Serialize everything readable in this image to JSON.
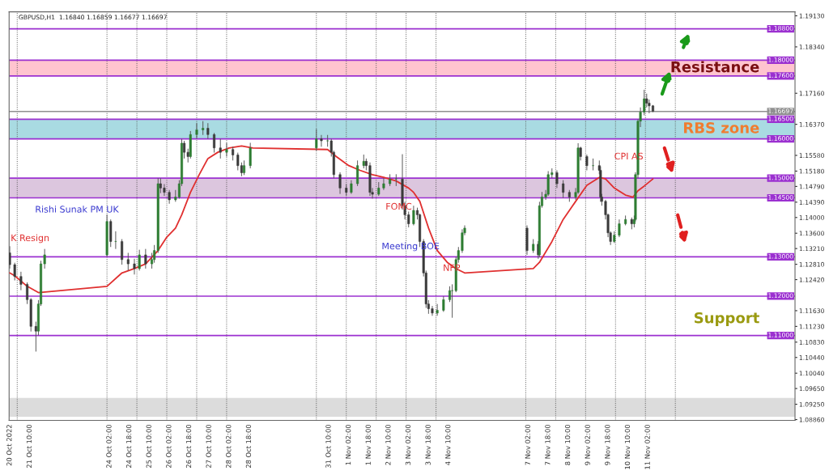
{
  "chart_data": {
    "type": "candlestick",
    "x": [
      "2022-10-20T18:00",
      "2022-10-20T22:00",
      "2022-10-21T03:00",
      "2022-10-21T08:00",
      "2022-10-21T11:00",
      "2022-10-21T15:00",
      "2022-10-21T17:00",
      "2022-10-21T19:00",
      "2022-10-21T22:00",
      "2022-10-24T00:00",
      "2022-10-24T03:00",
      "2022-10-24T07:00",
      "2022-10-24T12:00",
      "2022-10-24T17:00",
      "2022-10-24T22:00",
      "2022-10-25T02:00",
      "2022-10-25T07:00",
      "2022-10-25T12:00",
      "2022-10-25T14:00",
      "2022-10-25T17:00",
      "2022-10-25T19:00",
      "2022-10-25T22:00",
      "2022-10-26T02:00",
      "2022-10-26T07:00",
      "2022-10-26T10:00",
      "2022-10-26T12:00",
      "2022-10-26T14:00",
      "2022-10-26T17:00",
      "2022-10-26T19:00",
      "2022-10-27T00:00",
      "2022-10-27T05:00",
      "2022-10-27T09:00",
      "2022-10-27T14:00",
      "2022-10-27T19:00",
      "2022-10-28T00:00",
      "2022-10-28T05:00",
      "2022-10-28T09:00",
      "2022-10-28T12:00",
      "2022-10-28T14:00",
      "2022-10-28T19:00",
      "2022-10-31T00:00",
      "2022-10-31T04:00",
      "2022-10-31T09:00",
      "2022-10-31T12:00",
      "2022-10-31T14:00",
      "2022-10-31T19:00",
      "2022-11-01T00:00",
      "2022-11-01T04:00",
      "2022-11-01T09:00",
      "2022-11-01T14:00",
      "2022-11-01T16:00",
      "2022-11-01T19:00",
      "2022-11-01T21:00",
      "2022-11-02T02:00",
      "2022-11-02T06:00",
      "2022-11-02T11:00",
      "2022-11-02T16:00",
      "2022-11-02T21:00",
      "2022-11-02T23:00",
      "2022-11-03T02:00",
      "2022-11-03T06:00",
      "2022-11-03T09:00",
      "2022-11-03T11:00",
      "2022-11-03T14:00",
      "2022-11-03T16:00",
      "2022-11-03T18:00",
      "2022-11-03T21:00",
      "2022-11-04T01:00",
      "2022-11-04T06:00",
      "2022-11-04T11:00",
      "2022-11-04T13:00",
      "2022-11-04T16:00",
      "2022-11-04T18:00",
      "2022-11-04T21:00",
      "2022-11-04T23:00",
      "2022-11-07T01:00",
      "2022-11-07T06:00",
      "2022-11-07T10:00",
      "2022-11-07T11:00",
      "2022-11-07T13:00",
      "2022-11-07T16:00",
      "2022-11-07T18:00",
      "2022-11-07T21:00",
      "2022-11-08T01:00",
      "2022-11-08T06:00",
      "2022-11-08T11:00",
      "2022-11-08T16:00",
      "2022-11-08T18:00",
      "2022-11-08T20:00",
      "2022-11-09T01:00",
      "2022-11-09T06:00",
      "2022-11-09T11:00",
      "2022-11-09T12:00",
      "2022-11-09T13:00",
      "2022-11-09T16:00",
      "2022-11-09T18:00",
      "2022-11-09T20:00",
      "2022-11-09T23:00",
      "2022-11-10T03:00",
      "2022-11-10T08:00",
      "2022-11-10T13:00",
      "2022-11-10T15:00",
      "2022-11-10T16:00",
      "2022-11-10T18:00",
      "2022-11-10T20:00",
      "2022-11-10T23:00",
      "2022-11-11T01:00",
      "2022-11-11T03:00",
      "2022-11-11T06:00"
    ],
    "ohlc": [
      [
        1.131,
        1.1327,
        1.127,
        1.128
      ],
      [
        1.128,
        1.1285,
        1.124,
        1.125
      ],
      [
        1.125,
        1.1262,
        1.1215,
        1.123
      ],
      [
        1.123,
        1.1235,
        1.118,
        1.1191
      ],
      [
        1.1191,
        1.1195,
        1.111,
        1.1123
      ],
      [
        1.1123,
        1.1135,
        1.1059,
        1.1111
      ],
      [
        1.1111,
        1.119,
        1.11,
        1.118
      ],
      [
        1.118,
        1.129,
        1.1175,
        1.1282
      ],
      [
        1.1282,
        1.132,
        1.127,
        1.1305
      ],
      [
        1.1305,
        1.1407,
        1.13,
        1.139
      ],
      [
        1.139,
        1.1395,
        1.1325,
        1.1339
      ],
      [
        1.1339,
        1.1365,
        1.132,
        1.1339
      ],
      [
        1.1339,
        1.1345,
        1.128,
        1.1293
      ],
      [
        1.1293,
        1.131,
        1.1265,
        1.1282
      ],
      [
        1.1282,
        1.1295,
        1.1255,
        1.127
      ],
      [
        1.127,
        1.1318,
        1.1265,
        1.1305
      ],
      [
        1.1305,
        1.132,
        1.127,
        1.1282
      ],
      [
        1.1282,
        1.131,
        1.127,
        1.1293
      ],
      [
        1.1293,
        1.133,
        1.1285,
        1.1316
      ],
      [
        1.1316,
        1.15,
        1.131,
        1.1486
      ],
      [
        1.1486,
        1.15,
        1.1462,
        1.1475
      ],
      [
        1.1475,
        1.1485,
        1.1455,
        1.1464
      ],
      [
        1.1464,
        1.147,
        1.1435,
        1.1445
      ],
      [
        1.1445,
        1.147,
        1.144,
        1.1452
      ],
      [
        1.1452,
        1.1495,
        1.1448,
        1.1486
      ],
      [
        1.1486,
        1.16,
        1.148,
        1.1589
      ],
      [
        1.1589,
        1.1595,
        1.155,
        1.1566
      ],
      [
        1.1566,
        1.1575,
        1.154,
        1.1555
      ],
      [
        1.1555,
        1.162,
        1.155,
        1.1611
      ],
      [
        1.1611,
        1.164,
        1.16,
        1.1623
      ],
      [
        1.1623,
        1.1645,
        1.161,
        1.1627
      ],
      [
        1.1627,
        1.164,
        1.16,
        1.1611
      ],
      [
        1.1611,
        1.1615,
        1.1565,
        1.1577
      ],
      [
        1.1577,
        1.16,
        1.155,
        1.1566
      ],
      [
        1.1566,
        1.159,
        1.1555,
        1.1573
      ],
      [
        1.1573,
        1.158,
        1.1545,
        1.1559
      ],
      [
        1.1559,
        1.1565,
        1.152,
        1.1532
      ],
      [
        1.1532,
        1.154,
        1.1505,
        1.1514
      ],
      [
        1.1514,
        1.1545,
        1.1508,
        1.1532
      ],
      [
        1.1532,
        1.159,
        1.1525,
        1.1577
      ],
      [
        1.1577,
        1.1625,
        1.157,
        1.16
      ],
      [
        1.16,
        1.161,
        1.158,
        1.1595
      ],
      [
        1.1595,
        1.161,
        1.158,
        1.1595
      ],
      [
        1.1595,
        1.16,
        1.1555,
        1.1566
      ],
      [
        1.1566,
        1.157,
        1.15,
        1.1509
      ],
      [
        1.1509,
        1.1515,
        1.146,
        1.1475
      ],
      [
        1.1475,
        1.1485,
        1.1455,
        1.1464
      ],
      [
        1.1464,
        1.1495,
        1.146,
        1.1486
      ],
      [
        1.1486,
        1.1545,
        1.148,
        1.1532
      ],
      [
        1.1532,
        1.156,
        1.1525,
        1.1543
      ],
      [
        1.1543,
        1.155,
        1.152,
        1.1532
      ],
      [
        1.1532,
        1.154,
        1.1455,
        1.1464
      ],
      [
        1.1464,
        1.1475,
        1.1448,
        1.1459
      ],
      [
        1.1459,
        1.149,
        1.1455,
        1.1475
      ],
      [
        1.1475,
        1.15,
        1.147,
        1.1486
      ],
      [
        1.1486,
        1.151,
        1.148,
        1.1498
      ],
      [
        1.1498,
        1.151,
        1.148,
        1.1498
      ],
      [
        1.1498,
        1.1561,
        1.142,
        1.143
      ],
      [
        1.143,
        1.144,
        1.1395,
        1.1407
      ],
      [
        1.1407,
        1.1415,
        1.1375,
        1.1384
      ],
      [
        1.1384,
        1.143,
        1.138,
        1.1418
      ],
      [
        1.1418,
        1.1425,
        1.1395,
        1.1407
      ],
      [
        1.1407,
        1.141,
        1.1325,
        1.1339
      ],
      [
        1.1339,
        1.1345,
        1.125,
        1.1259
      ],
      [
        1.1259,
        1.1265,
        1.117,
        1.118
      ],
      [
        1.118,
        1.119,
        1.1155,
        1.1168
      ],
      [
        1.1168,
        1.1175,
        1.115,
        1.1157
      ],
      [
        1.1157,
        1.118,
        1.115,
        1.1164
      ],
      [
        1.1164,
        1.12,
        1.116,
        1.1191
      ],
      [
        1.1191,
        1.1225,
        1.1185,
        1.1214
      ],
      [
        1.1214,
        1.123,
        1.1145,
        1.1214
      ],
      [
        1.1214,
        1.13,
        1.121,
        1.1293
      ],
      [
        1.1293,
        1.1325,
        1.1285,
        1.1316
      ],
      [
        1.1316,
        1.137,
        1.131,
        1.1361
      ],
      [
        1.1361,
        1.138,
        1.1355,
        1.1373
      ],
      [
        1.1373,
        1.138,
        1.1305,
        1.1316
      ],
      [
        1.1316,
        1.1345,
        1.131,
        1.1332
      ],
      [
        1.1332,
        1.134,
        1.1295,
        1.1305
      ],
      [
        1.1305,
        1.144,
        1.13,
        1.143
      ],
      [
        1.143,
        1.1465,
        1.1425,
        1.1452
      ],
      [
        1.1452,
        1.147,
        1.1445,
        1.1459
      ],
      [
        1.1459,
        1.1518,
        1.1455,
        1.1509
      ],
      [
        1.1509,
        1.1525,
        1.15,
        1.1514
      ],
      [
        1.1514,
        1.152,
        1.1475,
        1.1486
      ],
      [
        1.1486,
        1.1495,
        1.145,
        1.1464
      ],
      [
        1.1464,
        1.147,
        1.144,
        1.1452
      ],
      [
        1.1452,
        1.1475,
        1.1445,
        1.1464
      ],
      [
        1.1464,
        1.1589,
        1.146,
        1.1577
      ],
      [
        1.1577,
        1.158,
        1.1545,
        1.1555
      ],
      [
        1.1555,
        1.156,
        1.152,
        1.1532
      ],
      [
        1.1532,
        1.155,
        1.152,
        1.1532
      ],
      [
        1.1532,
        1.1545,
        1.151,
        1.152
      ],
      [
        1.152,
        1.153,
        1.144,
        1.1452
      ],
      [
        1.1452,
        1.146,
        1.143,
        1.1441
      ],
      [
        1.1441,
        1.1445,
        1.1395,
        1.1407
      ],
      [
        1.1407,
        1.141,
        1.135,
        1.1361
      ],
      [
        1.1361,
        1.1365,
        1.133,
        1.1339
      ],
      [
        1.1339,
        1.1365,
        1.1335,
        1.1355
      ],
      [
        1.1355,
        1.1395,
        1.135,
        1.1384
      ],
      [
        1.1384,
        1.1405,
        1.138,
        1.1395
      ],
      [
        1.1395,
        1.14,
        1.137,
        1.1384
      ],
      [
        1.1384,
        1.1405,
        1.1375,
        1.1395
      ],
      [
        1.1395,
        1.1515,
        1.139,
        1.1509
      ],
      [
        1.1509,
        1.165,
        1.15,
        1.1645
      ],
      [
        1.1645,
        1.168,
        1.163,
        1.1668
      ],
      [
        1.1668,
        1.1725,
        1.166,
        1.1702
      ],
      [
        1.1702,
        1.1715,
        1.168,
        1.1691
      ],
      [
        1.1691,
        1.17,
        1.1665,
        1.1684
      ],
      [
        1.1684,
        1.1686,
        1.1668,
        1.167
      ]
    ],
    "series": [
      {
        "type": "line",
        "color": "#e03030",
        "x": [
          "2022-10-20T18:00",
          "2022-10-20T22:00",
          "2022-10-21T08:00",
          "2022-10-21T17:00",
          "2022-10-24T00:00",
          "2022-10-24T12:00",
          "2022-10-24T22:00",
          "2022-10-25T07:00",
          "2022-10-25T17:00",
          "2022-10-26T00:00",
          "2022-10-26T07:00",
          "2022-10-26T12:00",
          "2022-10-26T19:00",
          "2022-10-27T02:00",
          "2022-10-27T09:00",
          "2022-10-27T17:00",
          "2022-10-28T02:00",
          "2022-10-28T12:00",
          "2022-10-28T21:00",
          "2022-10-31T09:00",
          "2022-10-31T16:00",
          "2022-11-01T02:00",
          "2022-11-01T11:00",
          "2022-11-01T21:00",
          "2022-11-02T06:00",
          "2022-11-02T16:00",
          "2022-11-03T02:00",
          "2022-11-03T06:00",
          "2022-11-03T11:00",
          "2022-11-03T18:00",
          "2022-11-04T01:00",
          "2022-11-04T09:00",
          "2022-11-04T16:00",
          "2022-11-04T23:00",
          "2022-11-07T06:00",
          "2022-11-07T11:00",
          "2022-11-07T21:00",
          "2022-11-08T06:00",
          "2022-11-08T16:00",
          "2022-11-09T01:00",
          "2022-11-09T11:00",
          "2022-11-09T16:00",
          "2022-11-09T23:00",
          "2022-11-10T08:00",
          "2022-11-10T14:00",
          "2022-11-10T18:00",
          "2022-11-10T23:00",
          "2022-11-11T06:00"
        ],
        "values": [
          1.1259,
          1.1252,
          1.1225,
          1.1209,
          1.1225,
          1.1259,
          1.127,
          1.1282,
          1.1316,
          1.135,
          1.1373,
          1.1407,
          1.1464,
          1.1509,
          1.155,
          1.1566,
          1.1577,
          1.1582,
          1.1577,
          1.1573,
          1.1555,
          1.1532,
          1.152,
          1.1509,
          1.1502,
          1.1493,
          1.1475,
          1.1464,
          1.1441,
          1.1373,
          1.1316,
          1.1286,
          1.127,
          1.1259,
          1.127,
          1.1286,
          1.1339,
          1.1395,
          1.1441,
          1.1482,
          1.1502,
          1.1498,
          1.1475,
          1.1457,
          1.1452,
          1.1468,
          1.148,
          1.1498
        ]
      }
    ],
    "xlim": [
      "2022-10-20T17:30",
      "2022-11-16T00:00"
    ],
    "ylim": [
      1.0884,
      1.1923
    ],
    "xticks": [
      {
        "value": "2022-10-20T18:00",
        "label": "20 Oct 2022"
      },
      {
        "value": "2022-10-21T10:00",
        "label": "21 Oct 10:00"
      },
      {
        "value": "2022-10-24T02:00",
        "label": "24 Oct 02:00"
      },
      {
        "value": "2022-10-24T18:00",
        "label": "24 Oct 18:00"
      },
      {
        "value": "2022-10-25T10:00",
        "label": "25 Oct 10:00"
      },
      {
        "value": "2022-10-26T02:00",
        "label": "26 Oct 02:00"
      },
      {
        "value": "2022-10-26T18:00",
        "label": "26 Oct 18:00"
      },
      {
        "value": "2022-10-27T10:00",
        "label": "27 Oct 10:00"
      },
      {
        "value": "2022-10-28T02:00",
        "label": "28 Oct 02:00"
      },
      {
        "value": "2022-10-28T18:00",
        "label": "28 Oct 18:00"
      },
      {
        "value": "2022-10-31T10:00",
        "label": "31 Oct 10:00"
      },
      {
        "value": "2022-11-01T02:00",
        "label": "1 Nov 02:00"
      },
      {
        "value": "2022-11-01T18:00",
        "label": "1 Nov 18:00"
      },
      {
        "value": "2022-11-02T10:00",
        "label": "2 Nov 10:00"
      },
      {
        "value": "2022-11-03T02:00",
        "label": "3 Nov 02:00"
      },
      {
        "value": "2022-11-03T18:00",
        "label": "3 Nov 18:00"
      },
      {
        "value": "2022-11-04T10:00",
        "label": "4 Nov 10:00"
      },
      {
        "value": "2022-11-07T02:00",
        "label": "7 Nov 02:00"
      },
      {
        "value": "2022-11-07T18:00",
        "label": "7 Nov 18:00"
      },
      {
        "value": "2022-11-08T10:00",
        "label": "8 Nov 10:00"
      },
      {
        "value": "2022-11-09T02:00",
        "label": "9 Nov 02:00"
      },
      {
        "value": "2022-11-09T18:00",
        "label": "9 Nov 18:00"
      },
      {
        "value": "2022-11-10T10:00",
        "label": "10 Nov 10:00"
      },
      {
        "value": "2022-11-11T02:00",
        "label": "11 Nov 02:00"
      }
    ],
    "yticks": [
      {
        "value": 1.1913,
        "label": "1.19130"
      },
      {
        "value": 1.1834,
        "label": "1.18340"
      },
      {
        "value": 1.1716,
        "label": "1.17160"
      },
      {
        "value": 1.1637,
        "label": "1.16370"
      },
      {
        "value": 1.1558,
        "label": "1.15580"
      },
      {
        "value": 1.1518,
        "label": "1.15180"
      },
      {
        "value": 1.1479,
        "label": "1.14790"
      },
      {
        "value": 1.1439,
        "label": "1.14390"
      },
      {
        "value": 1.14,
        "label": "1.14000"
      },
      {
        "value": 1.136,
        "label": "1.13600"
      },
      {
        "value": 1.1321,
        "label": "1.13210"
      },
      {
        "value": 1.1281,
        "label": "1.12810"
      },
      {
        "value": 1.1242,
        "label": "1.12420"
      },
      {
        "value": 1.1163,
        "label": "1.11630"
      },
      {
        "value": 1.1123,
        "label": "1.11230"
      },
      {
        "value": 1.1083,
        "label": "1.10830"
      },
      {
        "value": 1.1044,
        "label": "1.10440"
      },
      {
        "value": 1.1004,
        "label": "1.10040"
      },
      {
        "value": 1.0965,
        "label": "1.09650"
      },
      {
        "value": 1.0925,
        "label": "1.09250"
      },
      {
        "value": 1.0886,
        "label": "1.08860"
      }
    ],
    "bands": [
      {
        "axis": "y",
        "from": 1.176,
        "to": 1.18,
        "label": "Resistance",
        "color": "#ffc4cf"
      },
      {
        "axis": "y",
        "from": 1.16,
        "to": 1.165,
        "label": "RBS zone",
        "color": "#a9dbe2"
      },
      {
        "axis": "y",
        "from": 1.145,
        "to": 1.15,
        "color": "#dcc6de"
      },
      {
        "axis": "y",
        "from": 1.0893,
        "to": 1.0941,
        "color": "#dcdcdc"
      }
    ],
    "ref_lines": [
      {
        "axis": "y",
        "value": 1.188,
        "label": "1.18800",
        "color": "#9b30d0"
      },
      {
        "axis": "y",
        "value": 1.18,
        "label": "1.18000",
        "color": "#9b30d0"
      },
      {
        "axis": "y",
        "value": 1.176,
        "label": "1.17600",
        "color": "#9b30d0"
      },
      {
        "axis": "y",
        "value": 1.16697,
        "label": "1.16697",
        "color": "#909090"
      },
      {
        "axis": "y",
        "value": 1.165,
        "label": "1.16500",
        "color": "#9b30d0"
      },
      {
        "axis": "y",
        "value": 1.16,
        "label": "1.16000",
        "color": "#9b30d0"
      },
      {
        "axis": "y",
        "value": 1.15,
        "label": "1.15000",
        "color": "#9b30d0"
      },
      {
        "axis": "y",
        "value": 1.145,
        "label": "1.14500",
        "color": "#9b30d0"
      },
      {
        "axis": "y",
        "value": 1.13,
        "label": "1.13000",
        "color": "#9b30d0"
      },
      {
        "axis": "y",
        "value": 1.12,
        "label": "1.12000",
        "color": "#9b30d0"
      },
      {
        "axis": "y",
        "value": 1.11,
        "label": "1.11000",
        "color": "#9b30d0"
      },
      {
        "axis": "x",
        "value": "2022-10-21T00:00",
        "color": "#555555",
        "line_style": "dotted"
      },
      {
        "axis": "x",
        "value": "2022-10-24T00:00",
        "color": "#555555",
        "line_style": "dotted"
      },
      {
        "axis": "x",
        "value": "2022-10-25T00:00",
        "color": "#555555",
        "line_style": "dotted"
      },
      {
        "axis": "x",
        "value": "2022-10-26T00:00",
        "color": "#555555",
        "line_style": "dotted"
      },
      {
        "axis": "x",
        "value": "2022-10-27T00:00",
        "color": "#555555",
        "line_style": "dotted"
      },
      {
        "axis": "x",
        "value": "2022-10-28T00:00",
        "color": "#555555",
        "line_style": "dotted"
      },
      {
        "axis": "x",
        "value": "2022-10-31T00:00",
        "color": "#555555",
        "line_style": "dotted"
      },
      {
        "axis": "x",
        "value": "2022-11-01T00:00",
        "color": "#555555",
        "line_style": "dotted"
      },
      {
        "axis": "x",
        "value": "2022-11-02T00:00",
        "color": "#555555",
        "line_style": "dotted"
      },
      {
        "axis": "x",
        "value": "2022-11-03T00:00",
        "color": "#555555",
        "line_style": "dotted"
      },
      {
        "axis": "x",
        "value": "2022-11-04T00:00",
        "color": "#555555",
        "line_style": "dotted"
      },
      {
        "axis": "x",
        "value": "2022-11-07T00:00",
        "color": "#555555",
        "line_style": "dotted"
      },
      {
        "axis": "x",
        "value": "2022-11-08T00:00",
        "color": "#555555",
        "line_style": "dotted"
      },
      {
        "axis": "x",
        "value": "2022-11-09T00:00",
        "color": "#555555",
        "line_style": "dotted"
      },
      {
        "axis": "x",
        "value": "2022-11-10T00:00",
        "color": "#555555",
        "line_style": "dotted"
      },
      {
        "axis": "x",
        "value": "2022-11-11T00:00",
        "color": "#555555",
        "line_style": "dotted"
      },
      {
        "axis": "x",
        "value": "2022-11-12T00:00",
        "color": "#555555",
        "line_style": "dotted"
      }
    ],
    "annotations": [
      "GBPUSD,H1  1.16840 1.16859 1.16677 1.16697",
      "K Resign",
      "Rishi Sunak PM UK",
      "FOMC",
      "Meeting BOE",
      "NFP",
      "CPI AS",
      "Support"
    ]
  }
}
